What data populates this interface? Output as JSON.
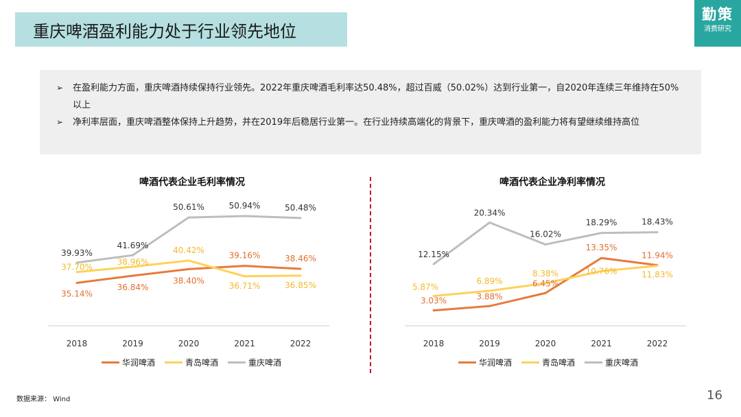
{
  "header": {
    "title": "重庆啤酒盈利能力处于行业领先地位"
  },
  "logo": {
    "main": "勤策",
    "sub": "消费研究"
  },
  "summary": {
    "bullets": [
      "在盈利能力方面，重庆啤酒持续保持行业领先。2022年重庆啤酒毛利率达50.48%，超过百威（50.02%）达到行业第一，自2020年连续三年维持在50%以上",
      "净利率层面，重庆啤酒整体保持上升趋势，并在2019年后稳居行业第一。在行业持续高端化的背景下，重庆啤酒的盈利能力将有望继续维持高位"
    ]
  },
  "colors": {
    "huarun": "#e8793a",
    "qingdao": "#fdd15a",
    "chongqing": "#bdbdbd",
    "divider": "#c8102e",
    "title_bg": "#b5dfe0",
    "logo_bg": "#2aa6a1"
  },
  "chart_data": [
    {
      "type": "line",
      "title": "啤酒代表企业毛利率情况",
      "categories": [
        "2018",
        "2019",
        "2020",
        "2021",
        "2022"
      ],
      "ylim": [
        25,
        55
      ],
      "series": [
        {
          "name": "华润啤酒",
          "values": [
            35.14,
            36.84,
            38.4,
            39.16,
            38.46
          ],
          "labels": [
            "35.14%",
            "36.84%",
            "38.40%",
            "39.16%",
            "38.46%"
          ]
        },
        {
          "name": "青岛啤酒",
          "values": [
            37.7,
            38.96,
            40.42,
            36.71,
            36.85
          ],
          "labels": [
            "37.70%",
            "38.96%",
            "40.42%",
            "36.71%",
            "36.85%"
          ]
        },
        {
          "name": "重庆啤酒",
          "values": [
            39.93,
            41.69,
            50.61,
            50.94,
            50.48
          ],
          "labels": [
            "39.93%",
            "41.69%",
            "50.61%",
            "50.94%",
            "50.48%"
          ]
        }
      ]
    },
    {
      "type": "line",
      "title": "啤酒代表企业净利率情况",
      "categories": [
        "2018",
        "2019",
        "2020",
        "2021",
        "2022"
      ],
      "ylim": [
        0,
        25
      ],
      "series": [
        {
          "name": "华润啤酒",
          "values": [
            3.03,
            3.88,
            6.45,
            13.35,
            11.94
          ],
          "labels": [
            "3.03%",
            "3.88%",
            "6.45%",
            "13.35%",
            "11.94%"
          ]
        },
        {
          "name": "青岛啤酒",
          "values": [
            5.87,
            6.89,
            8.38,
            10.76,
            11.83
          ],
          "labels": [
            "5.87%",
            "6.89%",
            "8.38%",
            "10.76%",
            "11.83%"
          ]
        },
        {
          "name": "重庆啤酒",
          "values": [
            12.15,
            20.34,
            16.02,
            18.29,
            18.43
          ],
          "labels": [
            "12.15%",
            "20.34%",
            "16.02%",
            "18.29%",
            "18.43%"
          ]
        }
      ]
    }
  ],
  "footer": {
    "source": "数据来源：  Wind",
    "page": "16"
  }
}
